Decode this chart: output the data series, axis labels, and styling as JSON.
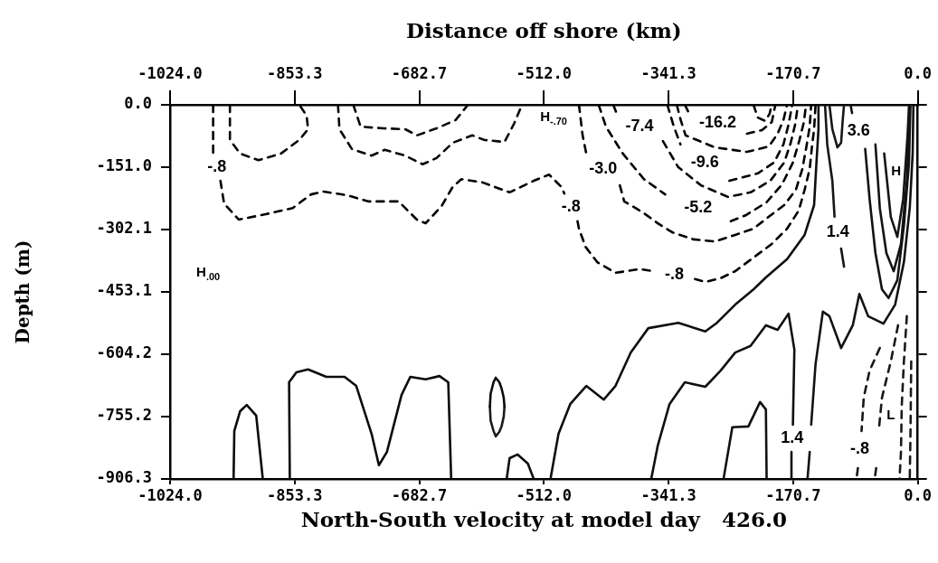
{
  "chart_data": {
    "type": "line",
    "xlabel": "North-South velocity at model day   426.0",
    "x2label": "Distance off shore (km)",
    "ylabel": "Depth (m)",
    "marker": "none",
    "xlim": [
      -1024,
      0
    ],
    "xticks": [
      {
        "value": -1024,
        "label": "-1024.0"
      },
      -853.3,
      -682.7,
      {
        "value": -512,
        "label": "-512.0"
      },
      -341.3,
      -170.7,
      {
        "value": 0,
        "label": "0.0"
      }
    ],
    "x2lim": [
      -1024,
      0
    ],
    "x2ticks": [
      {
        "value": -1024,
        "label": "-1024.0"
      },
      -853.3,
      -682.7,
      {
        "value": -512,
        "label": "-512.0"
      },
      -341.3,
      -170.7,
      {
        "value": 0,
        "label": "0.0"
      }
    ],
    "ylim": [
      -906.3,
      0
    ],
    "yticks": [
      {
        "value": 0,
        "label": "0.0"
      },
      {
        "value": -151,
        "label": "-151.0"
      },
      -302.1,
      -453.1,
      -604.2,
      -755.2,
      -906.3
    ],
    "series": [
      {
        "color": "#000000",
        "line_style": "dashed",
        "x": [
          -965,
          -965,
          null,
          -955,
          -950,
          -930,
          -893,
          -856,
          -831,
          -814,
          -782,
          -752,
          -711,
          -686,
          -674,
          -652,
          -637,
          -625,
          -596,
          -559,
          -526,
          -505,
          -488,
          -484,
          null,
          -466,
          -464,
          -455,
          -439,
          -414,
          -381,
          -362,
          null,
          -305,
          -291,
          -270,
          -250,
          -225,
          -200,
          -179,
          -163,
          -155,
          -148,
          -145,
          -142,
          -140
        ],
        "values": [
          0,
          -118,
          null,
          -184,
          -239,
          -278,
          -265,
          -250,
          -217,
          -210,
          -219,
          -234,
          -234,
          -278,
          -287,
          -245,
          -199,
          -180,
          -188,
          -212,
          -184,
          -169,
          -199,
          -215,
          null,
          -282,
          -300,
          -344,
          -381,
          -407,
          -398,
          -403,
          null,
          -422,
          -429,
          -420,
          -403,
          -370,
          -337,
          -300,
          -256,
          -206,
          -155,
          -103,
          -59,
          0
        ]
      },
      {
        "color": "#010101",
        "line_style": "dashed",
        "x": [
          -464,
          -459,
          -454,
          null,
          -408,
          -402,
          -377,
          -356,
          -336,
          -307,
          -278,
          -250,
          -225,
          -204,
          -183,
          -167,
          -158,
          -152,
          -148,
          -146
        ],
        "values": [
          0,
          -74,
          -118,
          null,
          -195,
          -234,
          -260,
          -287,
          -309,
          -326,
          -331,
          -315,
          -300,
          -271,
          -243,
          -206,
          -155,
          -96,
          -53,
          0
        ]
      },
      {
        "color": "#020202",
        "line_style": "dashed",
        "x": [
          -437,
          -427,
          -404,
          -375,
          -346,
          null,
          -256,
          -235,
          -207,
          -186,
          -171,
          -162,
          -156,
          -153
        ],
        "values": [
          0,
          -53,
          -118,
          -180,
          -217,
          null,
          -282,
          -267,
          -236,
          -193,
          -140,
          -85,
          -42,
          0
        ]
      },
      {
        "color": "#030303",
        "line_style": "dashed",
        "x": [
          -417,
          -413,
          null,
          -349,
          -328,
          -297,
          -260,
          -229,
          -202,
          -183,
          -174,
          -168,
          -164
        ],
        "values": [
          0,
          -18,
          null,
          -88,
          -151,
          -195,
          -223,
          -212,
          -184,
          -140,
          -92,
          -48,
          0
        ]
      },
      {
        "color": "#040404",
        "line_style": "dashed",
        "x": [
          -343,
          -334,
          -325,
          null,
          -258,
          -219,
          -197,
          -184,
          -177,
          -172
        ],
        "values": [
          0,
          -53,
          -96,
          null,
          -184,
          -166,
          -140,
          -96,
          -48,
          0
        ]
      },
      {
        "color": "#050505",
        "line_style": "dashed",
        "x": [
          -330,
          -325,
          -318,
          -278,
          -234,
          -204,
          -192,
          -184,
          -179
        ],
        "values": [
          0,
          -35,
          -74,
          -103,
          -114,
          -101,
          -70,
          -37,
          0
        ]
      },
      {
        "color": "#060606",
        "line_style": "dashed",
        "x": [
          -225,
          -219,
          -209,
          -203,
          -200
        ],
        "values": [
          0,
          -31,
          -39,
          -22,
          0
        ]
      },
      {
        "color": "#070707",
        "line_style": "dashed",
        "x": [
          -319,
          -314,
          null,
          -234,
          -213,
          -200,
          -195
        ],
        "values": [
          0,
          -18,
          null,
          -70,
          -61,
          -42,
          0
        ]
      },
      {
        "color": "#080808",
        "line_style": "dashed",
        "x": [
          -942,
          -942,
          -928,
          -903,
          -872,
          -847,
          -835,
          -837,
          -847
        ],
        "values": [
          0,
          -85,
          -118,
          -134,
          -118,
          -85,
          -59,
          -26,
          0
        ]
      },
      {
        "color": "#090909",
        "line_style": "dashed",
        "x": [
          -794,
          -792,
          -775,
          -748,
          -730,
          -702,
          -678,
          -659,
          -637,
          -610,
          -594,
          -566,
          -553,
          -542
        ],
        "values": [
          0,
          -59,
          -107,
          -123,
          -109,
          -123,
          -144,
          -129,
          -92,
          -74,
          -85,
          -90,
          -46,
          0
        ]
      },
      {
        "color": "#0a0a0a",
        "line_style": "dashed",
        "x": [
          -773,
          -763,
          -732,
          -702,
          -686,
          -659,
          -633,
          -616
        ],
        "values": [
          0,
          -53,
          -57,
          -59,
          -74,
          -57,
          -37,
          0
        ]
      },
      {
        "color": "#0b0b0b",
        "line_style": "solid",
        "x": [
          -937,
          -936,
          -928,
          -919,
          -906,
          -897
        ],
        "values": [
          -906,
          -790,
          -742,
          -727,
          -753,
          -906
        ]
      },
      {
        "color": "#0c0c0c",
        "line_style": "solid",
        "x": [
          -860,
          -861,
          -851,
          -835,
          -810,
          -785,
          -769,
          -748,
          -738,
          -727,
          -707,
          -695,
          -674,
          -655,
          -643,
          -639
        ],
        "values": [
          -906,
          -672,
          -648,
          -641,
          -659,
          -659,
          -681,
          -797,
          -873,
          -841,
          -703,
          -659,
          -665,
          -657,
          -672,
          -906
        ]
      },
      {
        "color": "#0d0d0d",
        "line_style": "solid",
        "x": [
          -586,
          -585,
          -581,
          -578,
          -573,
          -570,
          -567,
          -566
        ],
        "values": [
          -731,
          -700,
          -672,
          -661,
          -672,
          -687,
          -710,
          -731
        ]
      },
      {
        "color": "#1c1c1c",
        "line_style": "solid",
        "x": [
          -586,
          -585,
          -581,
          -578,
          -573,
          -570,
          -567,
          -566
        ],
        "values": [
          -731,
          -765,
          -790,
          -803,
          -792,
          -779,
          -755,
          -731
        ]
      },
      {
        "color": "#0e0e0e",
        "line_style": "solid",
        "x": [
          -563,
          -559,
          -548,
          -534,
          -526
        ],
        "values": [
          -906,
          -856,
          -847,
          -869,
          -906
        ]
      },
      {
        "color": "#0f0f0f",
        "line_style": "solid",
        "x": [
          -503,
          -492,
          -476,
          -454,
          -430,
          -414,
          -393,
          -369,
          -328,
          -291,
          -275,
          -250,
          -225,
          -208,
          -179,
          -155,
          -142,
          -139,
          -136,
          -136
        ],
        "values": [
          -906,
          -797,
          -725,
          -681,
          -714,
          -681,
          -600,
          -541,
          -528,
          -549,
          -528,
          -484,
          -447,
          -418,
          -374,
          -315,
          -243,
          -147,
          -59,
          0
        ]
      },
      {
        "color": "#101010",
        "line_style": "solid",
        "x": [
          -365,
          -356,
          -340,
          -319,
          -291,
          -270,
          -250,
          -229,
          -208,
          -192,
          -177,
          -169,
          -171,
          null,
          -173,
          -173
        ],
        "values": [
          -906,
          -825,
          -725,
          -672,
          -683,
          -644,
          -600,
          -584,
          -534,
          -545,
          -506,
          -593,
          -775,
          null,
          -841,
          -906
        ]
      },
      {
        "color": "#111111",
        "line_style": "solid",
        "x": [
          -266,
          -254,
          -232,
          -216,
          -208,
          -207
        ],
        "values": [
          -906,
          -781,
          -779,
          -720,
          -738,
          -906
        ]
      },
      {
        "color": "#121212",
        "line_style": "solid",
        "x": [
          -151,
          -148,
          null,
          -146,
          -140,
          -130,
          -121,
          -105,
          -89,
          -80,
          -68,
          -47,
          -31,
          -19,
          -11,
          -7,
          -6
        ],
        "values": [
          -906,
          -841,
          null,
          -775,
          -628,
          -501,
          -512,
          -589,
          -534,
          -458,
          -512,
          -530,
          -484,
          -381,
          -250,
          -118,
          0
        ]
      },
      {
        "color": "#131313",
        "line_style": "solid",
        "x": [
          -92,
          -90,
          null,
          -72,
          -66,
          -58,
          -49,
          -40,
          -28,
          -19,
          -12,
          -10
        ],
        "values": [
          0,
          -20,
          null,
          -107,
          -228,
          -359,
          -447,
          -468,
          -425,
          -293,
          -140,
          0
        ]
      },
      {
        "color": "#141414",
        "line_style": "solid",
        "x": [
          -58,
          -52,
          -43,
          -33,
          -23,
          -15,
          -11
        ],
        "values": [
          -96,
          -250,
          -359,
          -403,
          -337,
          -184,
          0
        ]
      },
      {
        "color": "#151515",
        "line_style": "solid",
        "x": [
          -46,
          -37,
          -28,
          -20,
          -14,
          -12
        ],
        "values": [
          -118,
          -271,
          -320,
          -228,
          -74,
          0
        ]
      },
      {
        "color": "#161616",
        "line_style": "solid",
        "x": [
          -127,
          -124,
          -117,
          -114,
          null,
          -105,
          -101
        ],
        "values": [
          0,
          -96,
          -184,
          -271,
          null,
          -348,
          -392
        ]
      },
      {
        "color": "#171717",
        "line_style": "solid",
        "x": [
          -121,
          -117,
          -110,
          -105,
          -103,
          -101
        ],
        "values": [
          0,
          -59,
          -103,
          -92,
          -42,
          0
        ]
      },
      {
        "color": "#181818",
        "line_style": "dashed",
        "x": [
          -52,
          -66,
          -74,
          -77,
          null,
          -82,
          -84
        ],
        "values": [
          -589,
          -644,
          -709,
          -790,
          null,
          -880,
          -906
        ]
      },
      {
        "color": "#191919",
        "line_style": "dashed",
        "x": [
          -27,
          -37,
          -49,
          -53,
          null,
          -57,
          -59
        ],
        "values": [
          -534,
          -622,
          -709,
          -781,
          null,
          -880,
          -906
        ]
      },
      {
        "color": "#1a1a1a",
        "line_style": "dashed",
        "x": [
          -15,
          -19,
          -22,
          -23,
          -25
        ],
        "values": [
          -512,
          -622,
          -731,
          -841,
          -906
        ]
      },
      {
        "color": "#1b1b1b",
        "line_style": "dashed",
        "x": [
          -9,
          -10,
          -11
        ],
        "values": [
          -622,
          -797,
          -906
        ]
      }
    ],
    "annotations": [
      {
        "text": "-.8",
        "x": -965,
        "y": -118
      },
      "H$_{.00}$",
      "H$_{-.70}$",
      {
        "text": "-7.4",
        "x": -413,
        "y": -18
      },
      {
        "text": "-16.2",
        "x": -314,
        "y": -18
      },
      {
        "text": "-3.0",
        "x": -454,
        "y": -118
      },
      {
        "text": "-9.6",
        "x": -325,
        "y": -96
      },
      {
        "text": "-.8",
        "x": -484,
        "y": -215
      },
      {
        "text": "-5.2",
        "x": -346,
        "y": -217
      },
      {
        "text": "-.8",
        "x": -362,
        "y": -403
      },
      {
        "text": "3.6",
        "x": -90,
        "y": -20
      },
      {
        "text": "1.4",
        "x": -114,
        "y": -271
      },
      "H",
      {
        "text": "1.4",
        "x": -171,
        "y": -775
      },
      {
        "text": "-.8",
        "x": -77,
        "y": -790
      },
      "L"
    ]
  }
}
